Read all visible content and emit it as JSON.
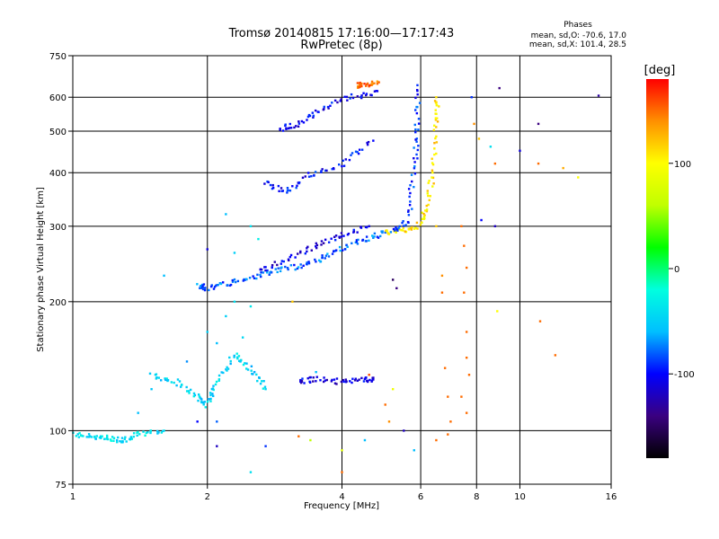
{
  "chart_data": {
    "type": "scatter",
    "title": "Tromsø 20140815 17:16:00—17:17:43",
    "subtitle": "RwPretec (8p)",
    "xlabel": "Frequency [MHz]",
    "ylabel": "Stationary phase Virtual Height [km]",
    "x_scale": "log",
    "y_scale": "log",
    "xlim": [
      1,
      16
    ],
    "ylim": [
      75,
      750
    ],
    "x_ticks": [
      1,
      2,
      4,
      6,
      8,
      10,
      16
    ],
    "x_ticks_labels": [
      "1",
      "2",
      "4",
      "6",
      "8",
      "10",
      "16"
    ],
    "y_ticks": [
      75,
      100,
      200,
      300,
      400,
      500,
      600,
      750
    ],
    "y_ticks_labels": [
      "75",
      "100",
      "200",
      "300",
      "400",
      "500",
      "600",
      "750"
    ],
    "grid": true,
    "stats": {
      "title": "Phases",
      "line_o": "mean, sd,O: -70.6, 17.0",
      "line_x": "mean, sd,X: 101.4, 28.5"
    },
    "colorbar": {
      "label": "[deg]",
      "range": [
        -180,
        180
      ],
      "ticks": [
        100,
        0,
        -100
      ],
      "ticks_labels": [
        "100",
        "0",
        "-100"
      ],
      "colors": [
        "#000000",
        "#3a0080",
        "#0000ff",
        "#00bfff",
        "#00ffdf",
        "#00ff00",
        "#c0ff00",
        "#ffff00",
        "#ff9000",
        "#ff0000"
      ]
    },
    "traces": [
      {
        "points": [
          [
            1.0,
            98
          ],
          [
            1.1,
            97
          ],
          [
            1.2,
            96
          ],
          [
            1.3,
            95
          ],
          [
            1.4,
            98
          ],
          [
            1.6,
            100
          ]
        ],
        "phase": -40
      },
      {
        "points": [
          [
            1.5,
            135
          ],
          [
            1.7,
            130
          ],
          [
            1.9,
            120
          ],
          [
            2.0,
            115
          ],
          [
            2.1,
            130
          ],
          [
            2.3,
            150
          ],
          [
            2.5,
            140
          ],
          [
            2.7,
            125
          ]
        ],
        "phase": -45
      },
      {
        "points": [
          [
            1.9,
            218
          ],
          [
            2.0,
            215
          ],
          [
            2.2,
            220
          ],
          [
            2.5,
            228
          ],
          [
            2.8,
            236
          ],
          [
            3.2,
            242
          ],
          [
            3.6,
            252
          ],
          [
            4.0,
            265
          ],
          [
            4.5,
            280
          ],
          [
            5.0,
            290
          ]
        ],
        "phase": -80
      },
      {
        "points": [
          [
            2.6,
            235
          ],
          [
            3.0,
            250
          ],
          [
            3.5,
            270
          ],
          [
            4.0,
            285
          ],
          [
            4.6,
            300
          ]
        ],
        "phase": -110
      },
      {
        "points": [
          [
            5.0,
            290
          ],
          [
            5.4,
            292
          ],
          [
            5.9,
            300
          ],
          [
            6.2,
            330
          ],
          [
            6.4,
            400
          ],
          [
            6.5,
            520
          ],
          [
            6.5,
            600
          ]
        ],
        "phase": 110
      },
      {
        "points": [
          [
            5.2,
            290
          ],
          [
            5.6,
            310
          ],
          [
            5.8,
            400
          ],
          [
            5.9,
            500
          ],
          [
            5.9,
            640
          ]
        ],
        "phase": -90
      },
      {
        "points": [
          [
            2.7,
            380
          ],
          [
            3.0,
            360
          ],
          [
            3.4,
            395
          ],
          [
            4.0,
            420
          ],
          [
            4.7,
            475
          ]
        ],
        "phase": -100
      },
      {
        "points": [
          [
            2.9,
            505
          ],
          [
            3.2,
            520
          ],
          [
            3.6,
            565
          ],
          [
            4.2,
            600
          ],
          [
            4.8,
            620
          ]
        ],
        "phase": -105
      },
      {
        "points": [
          [
            4.3,
            640
          ],
          [
            4.5,
            640
          ],
          [
            4.8,
            645
          ]
        ],
        "phase": 150
      },
      {
        "points": [
          [
            3.2,
            130
          ],
          [
            3.5,
            132
          ],
          [
            4.0,
            130
          ],
          [
            4.5,
            131
          ],
          [
            4.7,
            132
          ]
        ],
        "phase": -110
      }
    ],
    "scatter_points": [
      {
        "x": 2.3,
        "y": 260,
        "phase": -50
      },
      {
        "x": 2.5,
        "y": 300,
        "phase": -40
      },
      {
        "x": 2.6,
        "y": 280,
        "phase": -30
      },
      {
        "x": 2.0,
        "y": 265,
        "phase": -110
      },
      {
        "x": 2.2,
        "y": 320,
        "phase": -60
      },
      {
        "x": 1.6,
        "y": 230,
        "phase": -60
      },
      {
        "x": 2.0,
        "y": 170,
        "phase": -50
      },
      {
        "x": 2.1,
        "y": 160,
        "phase": -60
      },
      {
        "x": 2.2,
        "y": 185,
        "phase": -50
      },
      {
        "x": 1.8,
        "y": 145,
        "phase": -70
      },
      {
        "x": 2.4,
        "y": 165,
        "phase": -45
      },
      {
        "x": 2.3,
        "y": 200,
        "phase": -40
      },
      {
        "x": 2.5,
        "y": 195,
        "phase": -35
      },
      {
        "x": 1.4,
        "y": 110,
        "phase": -60
      },
      {
        "x": 1.5,
        "y": 125,
        "phase": -55
      },
      {
        "x": 1.9,
        "y": 105,
        "phase": -100
      },
      {
        "x": 2.1,
        "y": 105,
        "phase": -80
      },
      {
        "x": 2.1,
        "y": 92,
        "phase": -120
      },
      {
        "x": 2.7,
        "y": 92,
        "phase": -90
      },
      {
        "x": 2.5,
        "y": 80,
        "phase": -40
      },
      {
        "x": 3.2,
        "y": 97,
        "phase": 150
      },
      {
        "x": 3.4,
        "y": 95,
        "phase": 60
      },
      {
        "x": 4.0,
        "y": 90,
        "phase": 80
      },
      {
        "x": 4.0,
        "y": 80,
        "phase": 150
      },
      {
        "x": 4.5,
        "y": 95,
        "phase": -60
      },
      {
        "x": 5.0,
        "y": 115,
        "phase": 150
      },
      {
        "x": 5.1,
        "y": 105,
        "phase": 140
      },
      {
        "x": 5.2,
        "y": 125,
        "phase": 90
      },
      {
        "x": 3.1,
        "y": 200,
        "phase": 120
      },
      {
        "x": 3.5,
        "y": 137,
        "phase": -60
      },
      {
        "x": 6.5,
        "y": 95,
        "phase": 150
      },
      {
        "x": 6.9,
        "y": 98,
        "phase": 150
      },
      {
        "x": 7.4,
        "y": 300,
        "phase": 150
      },
      {
        "x": 7.5,
        "y": 270,
        "phase": 150
      },
      {
        "x": 7.6,
        "y": 240,
        "phase": 150
      },
      {
        "x": 7.5,
        "y": 210,
        "phase": 150
      },
      {
        "x": 7.6,
        "y": 170,
        "phase": 150
      },
      {
        "x": 7.6,
        "y": 148,
        "phase": 150
      },
      {
        "x": 7.7,
        "y": 135,
        "phase": 150
      },
      {
        "x": 7.4,
        "y": 120,
        "phase": 150
      },
      {
        "x": 7.6,
        "y": 110,
        "phase": 150
      },
      {
        "x": 6.7,
        "y": 230,
        "phase": 140
      },
      {
        "x": 6.7,
        "y": 210,
        "phase": 150
      },
      {
        "x": 6.8,
        "y": 140,
        "phase": 150
      },
      {
        "x": 6.9,
        "y": 120,
        "phase": 150
      },
      {
        "x": 7.0,
        "y": 105,
        "phase": 150
      },
      {
        "x": 6.5,
        "y": 300,
        "phase": 120
      },
      {
        "x": 7.8,
        "y": 600,
        "phase": -90
      },
      {
        "x": 7.9,
        "y": 520,
        "phase": 140
      },
      {
        "x": 8.1,
        "y": 480,
        "phase": 120
      },
      {
        "x": 8.2,
        "y": 310,
        "phase": -100
      },
      {
        "x": 8.6,
        "y": 460,
        "phase": -40
      },
      {
        "x": 8.8,
        "y": 420,
        "phase": 150
      },
      {
        "x": 8.8,
        "y": 300,
        "phase": -120
      },
      {
        "x": 8.9,
        "y": 190,
        "phase": 100
      },
      {
        "x": 9.0,
        "y": 630,
        "phase": -140
      },
      {
        "x": 10.0,
        "y": 450,
        "phase": -110
      },
      {
        "x": 11.0,
        "y": 520,
        "phase": -140
      },
      {
        "x": 11.0,
        "y": 420,
        "phase": 150
      },
      {
        "x": 11.1,
        "y": 180,
        "phase": 150
      },
      {
        "x": 12.0,
        "y": 150,
        "phase": 150
      },
      {
        "x": 12.5,
        "y": 410,
        "phase": 130
      },
      {
        "x": 13.5,
        "y": 390,
        "phase": 100
      },
      {
        "x": 15.0,
        "y": 605,
        "phase": -130
      },
      {
        "x": 5.2,
        "y": 225,
        "phase": -150
      },
      {
        "x": 5.3,
        "y": 215,
        "phase": -140
      },
      {
        "x": 4.6,
        "y": 135,
        "phase": 160
      },
      {
        "x": 5.8,
        "y": 90,
        "phase": -60
      },
      {
        "x": 5.5,
        "y": 100,
        "phase": -120
      }
    ]
  }
}
